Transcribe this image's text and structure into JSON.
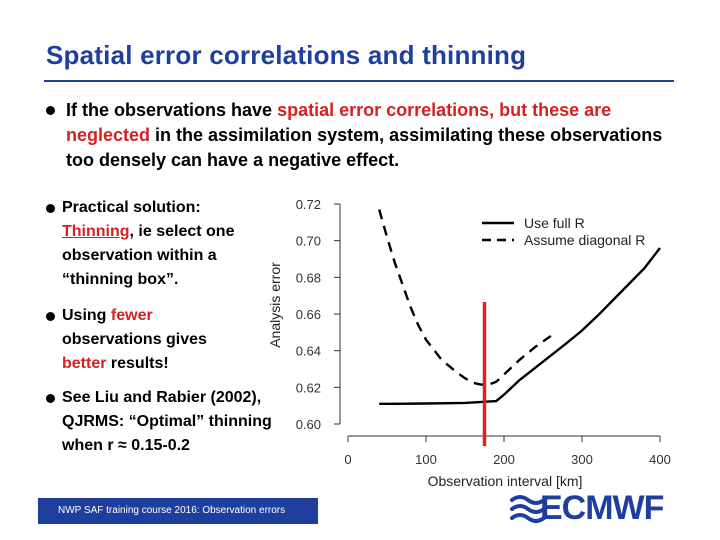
{
  "slide": {
    "title": "Spatial error correlations and thinning",
    "main_bullet": {
      "part1": "If the observations have ",
      "highlight1": "spatial error correlations, but these are neglected",
      "part2": " in the assimilation system, assimilating these observations too densely can have a negative effect."
    },
    "bullets": [
      {
        "pre": "Practical solution: ",
        "link": "Thinning",
        "post": ", ie select one observation within a “thinning box”."
      },
      {
        "pre": "Using ",
        "red1": "fewer",
        "mid": " observations gives ",
        "red2": "better",
        "post": " results!"
      },
      {
        "text": "See Liu and Rabier (2002), QJRMS: “Optimal” thinning when r ≈ 0.15-0.2"
      }
    ],
    "footer": "NWP SAF training course 2016: Observation errors",
    "logo": "ECMWF",
    "colors": {
      "title": "#1f3f9e",
      "highlight": "#d62121",
      "marker_line": "#e02020"
    }
  },
  "chart_data": {
    "type": "line",
    "xlabel": "Observation interval [km]",
    "ylabel": "Analysis error",
    "xlim": [
      0,
      400
    ],
    "ylim": [
      0.6,
      0.72
    ],
    "xticks": [
      "0",
      "100",
      "200",
      "300",
      "400"
    ],
    "yticks": [
      "0.60",
      "0.62",
      "0.64",
      "0.66",
      "0.68",
      "0.70",
      "0.72"
    ],
    "legend_position": "top-right",
    "series": [
      {
        "name": "Use full R",
        "style": "solid",
        "x": [
          40,
          60,
          100,
          150,
          190,
          200,
          220,
          250,
          280,
          300,
          320,
          350,
          380,
          400
        ],
        "y": [
          0.611,
          0.611,
          0.6112,
          0.6115,
          0.6125,
          0.616,
          0.624,
          0.634,
          0.644,
          0.651,
          0.659,
          0.672,
          0.685,
          0.696
        ]
      },
      {
        "name": "Assume diagonal R",
        "style": "dashed",
        "x": [
          40,
          50,
          60,
          70,
          80,
          90,
          100,
          120,
          140,
          150,
          160,
          170,
          180,
          190,
          200,
          220,
          240,
          260
        ],
        "y": [
          0.717,
          0.702,
          0.688,
          0.676,
          0.664,
          0.654,
          0.646,
          0.635,
          0.628,
          0.625,
          0.6225,
          0.6215,
          0.6215,
          0.623,
          0.627,
          0.635,
          0.642,
          0.648
        ]
      }
    ],
    "marker_x": 175
  }
}
